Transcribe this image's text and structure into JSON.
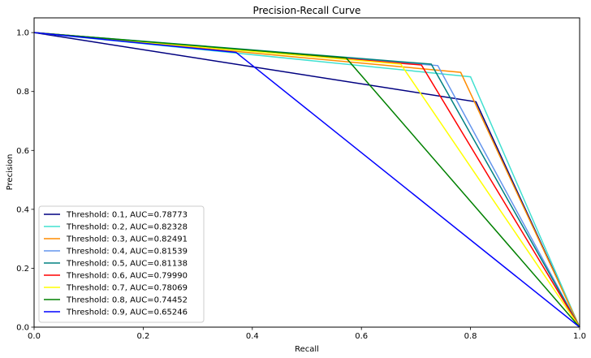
{
  "chart_data": {
    "type": "line",
    "title": "Precision-Recall Curve",
    "xlabel": "Recall",
    "ylabel": "Precision",
    "xlim": [
      0,
      1
    ],
    "ylim": [
      0,
      1.05
    ],
    "xticks": [
      "0.0",
      "0.2",
      "0.4",
      "0.6",
      "0.8",
      "1.0"
    ],
    "xtick_values": [
      0,
      0.2,
      0.4,
      0.6,
      0.8,
      1.0
    ],
    "yticks": [
      "0.0",
      "0.2",
      "0.4",
      "0.6",
      "0.8",
      "1.0"
    ],
    "ytick_values": [
      0,
      0.2,
      0.4,
      0.6,
      0.8,
      1.0
    ],
    "grid": false,
    "legend_position": "lower-left",
    "series": [
      {
        "name": "Threshold: 0.1, AUC=0.78773",
        "color": "#000080",
        "x": [
          0,
          0.81,
          1
        ],
        "y": [
          1.0,
          0.765,
          0
        ]
      },
      {
        "name": "Threshold: 0.2, AUC=0.82328",
        "color": "#40e0d0",
        "x": [
          0,
          0.8,
          1
        ],
        "y": [
          1.0,
          0.85,
          0
        ]
      },
      {
        "name": "Threshold: 0.3, AUC=0.82491",
        "color": "#ff8c00",
        "x": [
          0,
          0.782,
          1
        ],
        "y": [
          1.0,
          0.865,
          0
        ]
      },
      {
        "name": "Threshold: 0.4, AUC=0.81539",
        "color": "#6495ed",
        "x": [
          0,
          0.74,
          1
        ],
        "y": [
          1.0,
          0.888,
          0
        ]
      },
      {
        "name": "Threshold: 0.5, AUC=0.81138",
        "color": "#008080",
        "x": [
          0,
          0.728,
          1
        ],
        "y": [
          1.0,
          0.893,
          0
        ]
      },
      {
        "name": "Threshold: 0.6, AUC=0.79990",
        "color": "#ff0000",
        "x": [
          0,
          0.71,
          1
        ],
        "y": [
          1.0,
          0.89,
          0
        ]
      },
      {
        "name": "Threshold: 0.7, AUC=0.78069",
        "color": "#ffff00",
        "x": [
          0,
          0.672,
          1
        ],
        "y": [
          1.0,
          0.893,
          0
        ]
      },
      {
        "name": "Threshold: 0.8, AUC=0.74452",
        "color": "#008000",
        "x": [
          0,
          0.572,
          1
        ],
        "y": [
          1.0,
          0.914,
          0
        ]
      },
      {
        "name": "Threshold: 0.9, AUC=0.65246",
        "color": "#0000ff",
        "x": [
          0,
          0.37,
          1
        ],
        "y": [
          1.0,
          0.933,
          0
        ]
      }
    ]
  }
}
